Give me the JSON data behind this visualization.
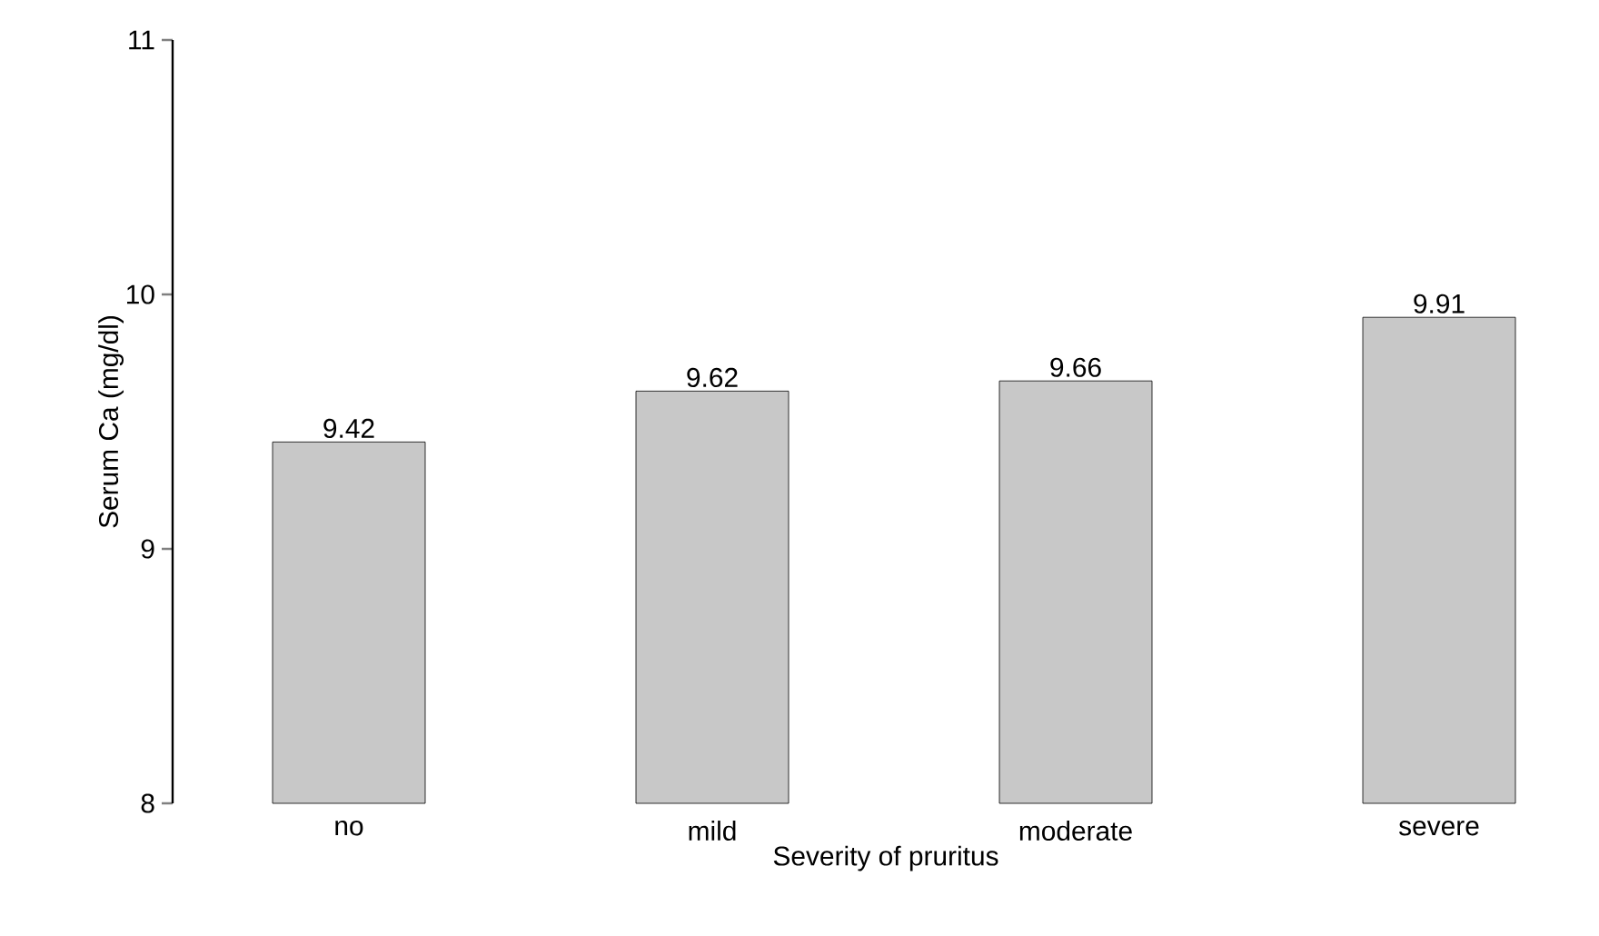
{
  "chart_data": {
    "type": "bar",
    "xlabel": "Severity of pruritus",
    "ylabel": "Serum Ca (mg/dl)",
    "categories": [
      "no",
      "mild",
      "moderate",
      "severe"
    ],
    "values": [
      9.42,
      9.62,
      9.66,
      9.91
    ],
    "color": "#c8c8c8",
    "ylim": [
      8,
      11
    ],
    "yticks": [
      8,
      9,
      10,
      11
    ],
    "data_labels": true
  }
}
